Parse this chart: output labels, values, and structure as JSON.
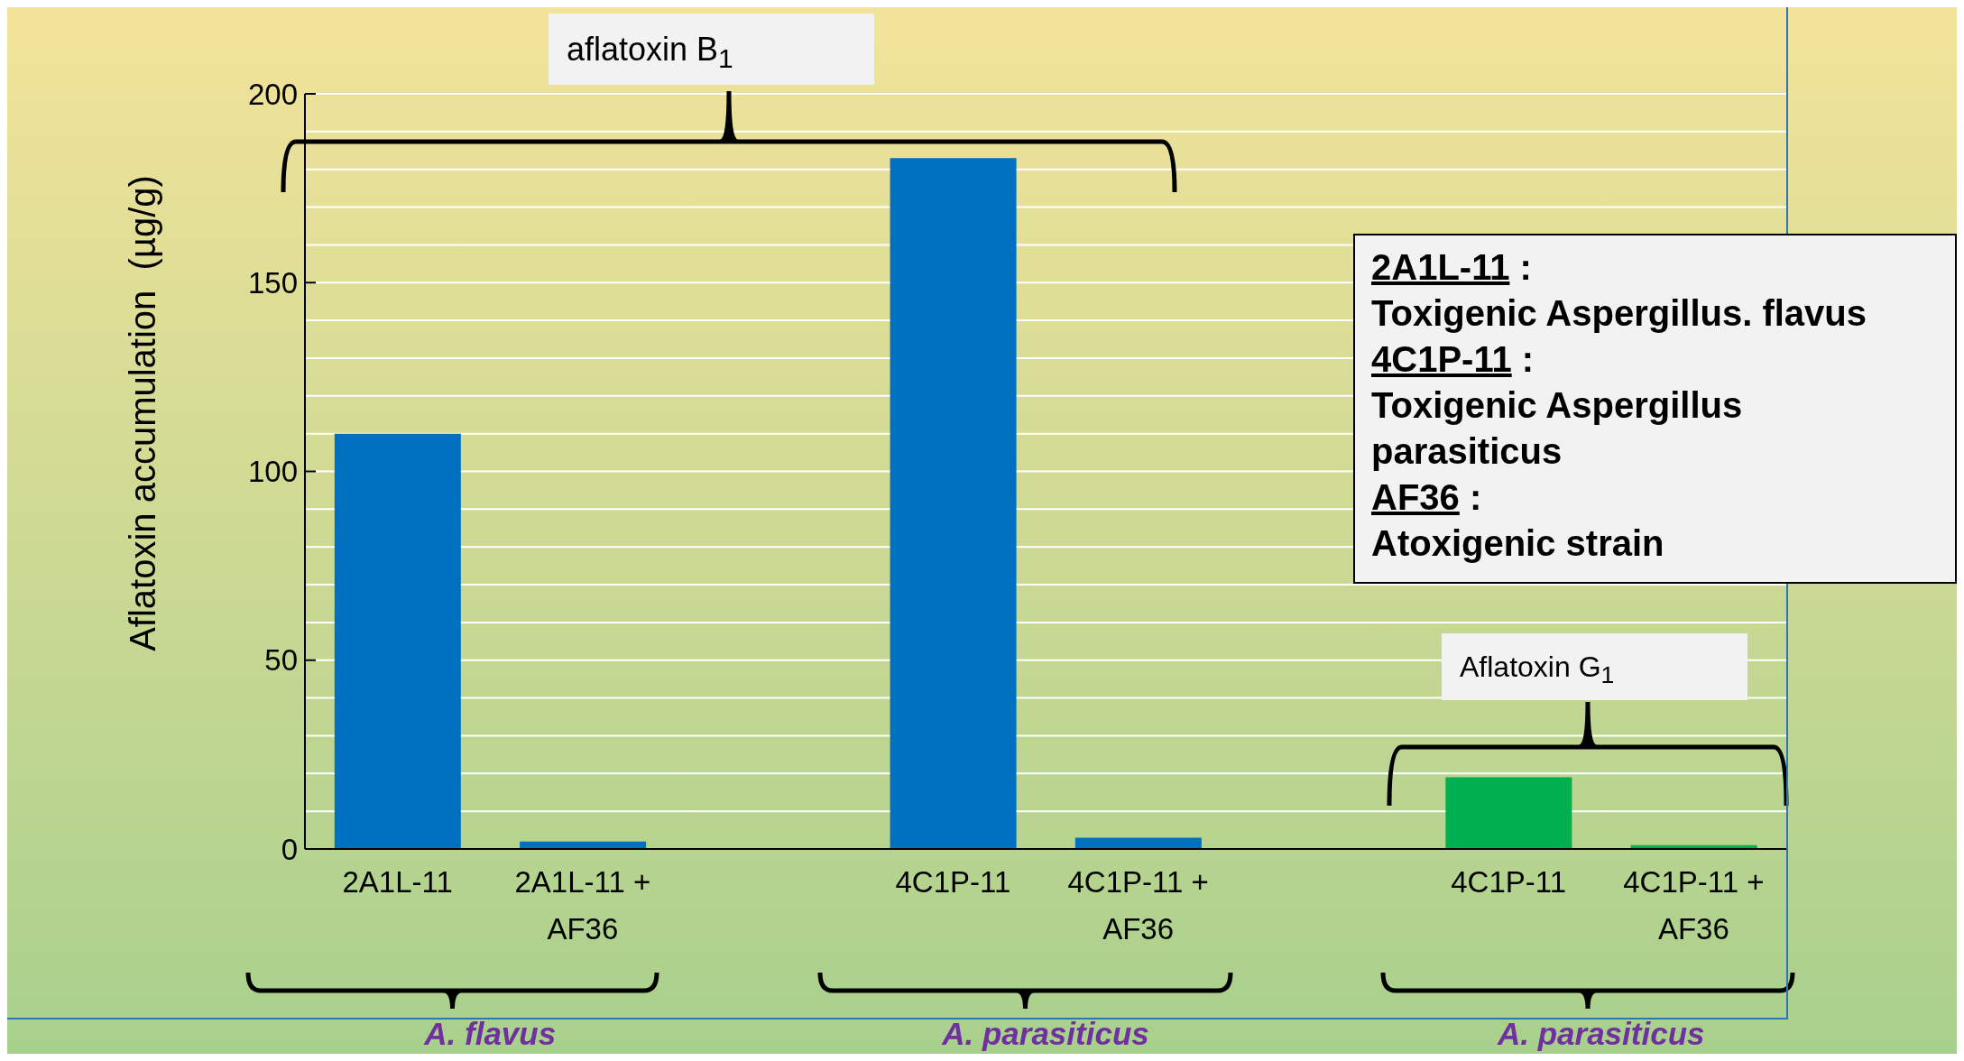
{
  "chart_data": {
    "type": "bar",
    "ylabel": "Aflatoxin accumulation  (µg/g)",
    "categories": [
      "2A1L-11",
      "2A1L-11 + AF36",
      null,
      "4C1P-11",
      "4C1P-11 + AF36",
      null,
      "4C1P-11",
      "4C1P-11 + AF36"
    ],
    "values": [
      110,
      2,
      null,
      183,
      3,
      null,
      19,
      1
    ],
    "colors": [
      "#0070c0",
      "#0070c0",
      "#0070c0",
      "#0070c0",
      "#0070c0",
      "#00b050",
      "#00b050",
      "#00b050"
    ],
    "ylim": [
      0,
      200
    ],
    "yticks": [
      0,
      {
        "value": 10,
        "label": null
      },
      {
        "value": 20,
        "label": null
      },
      {
        "value": 30,
        "label": null
      },
      {
        "value": 40,
        "label": null
      },
      50,
      {
        "value": 60,
        "label": null
      },
      {
        "value": 70,
        "label": null
      },
      {
        "value": 80,
        "label": null
      },
      {
        "value": 90,
        "label": null
      },
      100,
      {
        "value": 110,
        "label": null
      },
      {
        "value": 120,
        "label": null
      },
      {
        "value": 130,
        "label": null
      },
      {
        "value": 140,
        "label": null
      },
      150,
      {
        "value": 160,
        "label": null
      },
      {
        "value": 170,
        "label": null
      },
      {
        "value": 180,
        "label": null
      },
      {
        "value": 190,
        "label": null
      },
      200
    ],
    "grid": "y",
    "annotations": [
      "aflatoxin B$_{1}$",
      "Aflatoxin G$_{1}$",
      "A. flavus",
      "A. parasiticus",
      "A. parasiticus",
      "2A1L-11 :",
      "Toxigenic Aspergillus. flavus",
      "4C1P-11 :",
      "Toxigenic Aspergillus parasiticus",
      "AF36 :",
      "Atoxigenic strain"
    ]
  }
}
